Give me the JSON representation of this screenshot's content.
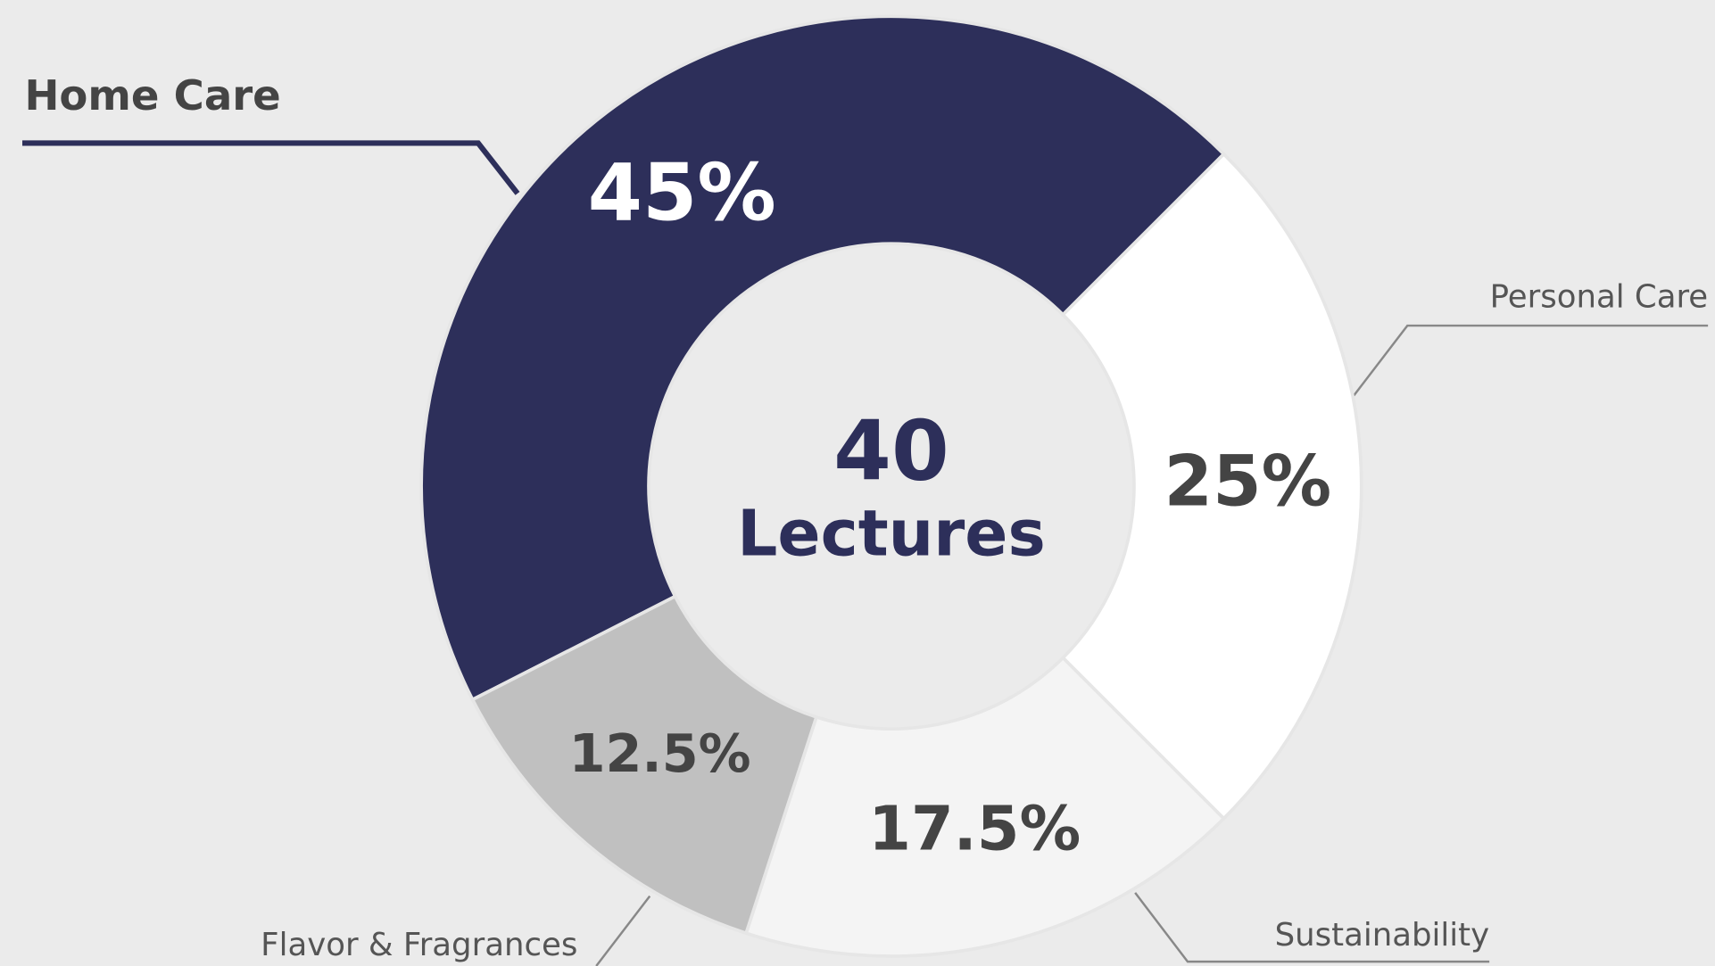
{
  "chart_data": {
    "type": "donut",
    "categories": [
      "Home Care",
      "Personal Care",
      "Sustainability",
      "Flavor & Fragrances"
    ],
    "values": [
      45,
      25,
      17.5,
      12.5
    ],
    "value_labels": [
      "45%",
      "25%",
      "17.5%",
      "12.5%"
    ],
    "colors": [
      "#2d2f5a",
      "#ffffff",
      "#f4f4f4",
      "#c0c0c0"
    ],
    "center_value": "40",
    "center_label": "Lectures"
  }
}
